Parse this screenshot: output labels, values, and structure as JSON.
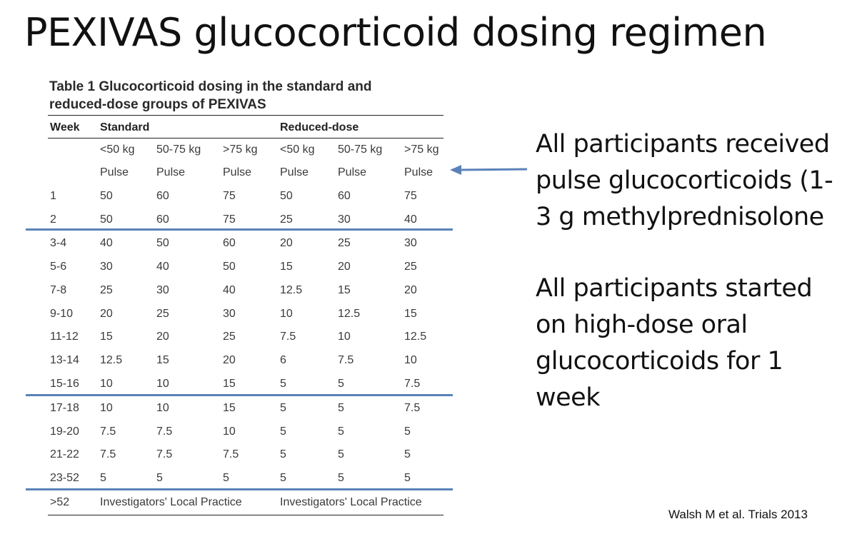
{
  "title": "PEXIVAS glucocorticoid dosing regimen",
  "table": {
    "caption_line1": "Table 1 Glucocorticoid dosing in the standard and",
    "caption_line2": "reduced-dose groups of PEXIVAS",
    "header": {
      "week": "Week",
      "standard": "Standard",
      "reduced": "Reduced-dose"
    },
    "weights": [
      "<50 kg",
      "50-75 kg",
      ">75 kg",
      "<50 kg",
      "50-75 kg",
      ">75 kg"
    ],
    "pulse": [
      "Pulse",
      "Pulse",
      "Pulse",
      "Pulse",
      "Pulse",
      "Pulse"
    ],
    "rows": [
      {
        "week": "1",
        "v": [
          "50",
          "60",
          "75",
          "50",
          "60",
          "75"
        ]
      },
      {
        "week": "2",
        "v": [
          "50",
          "60",
          "75",
          "25",
          "30",
          "40"
        ]
      },
      {
        "week": "3-4",
        "v": [
          "40",
          "50",
          "60",
          "20",
          "25",
          "30"
        ]
      },
      {
        "week": "5-6",
        "v": [
          "30",
          "40",
          "50",
          "15",
          "20",
          "25"
        ]
      },
      {
        "week": "7-8",
        "v": [
          "25",
          "30",
          "40",
          "12.5",
          "15",
          "20"
        ]
      },
      {
        "week": "9-10",
        "v": [
          "20",
          "25",
          "30",
          "10",
          "12.5",
          "15"
        ]
      },
      {
        "week": "11-12",
        "v": [
          "15",
          "20",
          "25",
          "7.5",
          "10",
          "12.5"
        ]
      },
      {
        "week": "13-14",
        "v": [
          "12.5",
          "15",
          "20",
          "6",
          "7.5",
          "10"
        ]
      },
      {
        "week": "15-16",
        "v": [
          "10",
          "10",
          "15",
          "5",
          "5",
          "7.5"
        ]
      },
      {
        "week": "17-18",
        "v": [
          "10",
          "10",
          "15",
          "5",
          "5",
          "7.5"
        ]
      },
      {
        "week": "19-20",
        "v": [
          "7.5",
          "7.5",
          "10",
          "5",
          "5",
          "5"
        ]
      },
      {
        "week": "21-22",
        "v": [
          "7.5",
          "7.5",
          "7.5",
          "5",
          "5",
          "5"
        ]
      },
      {
        "week": "23-52",
        "v": [
          "5",
          "5",
          "5",
          "5",
          "5",
          "5"
        ]
      }
    ],
    "final_row": {
      "week": ">52",
      "standard": "Investigators' Local Practice",
      "reduced": "Investigators' Local Practice"
    }
  },
  "annotations": {
    "pulse_note": [
      "All participants received",
      "pulse glucocorticoids (1-",
      "3 g methylprednisolone"
    ],
    "oral_note": [
      "All participants started",
      "on high-dose oral",
      "glucocorticoids for 1",
      "week"
    ]
  },
  "citation": "Walsh M et al. Trials  2013",
  "colors": {
    "accent_rule": "#5b82b8",
    "arrow": "#5b82b8"
  }
}
